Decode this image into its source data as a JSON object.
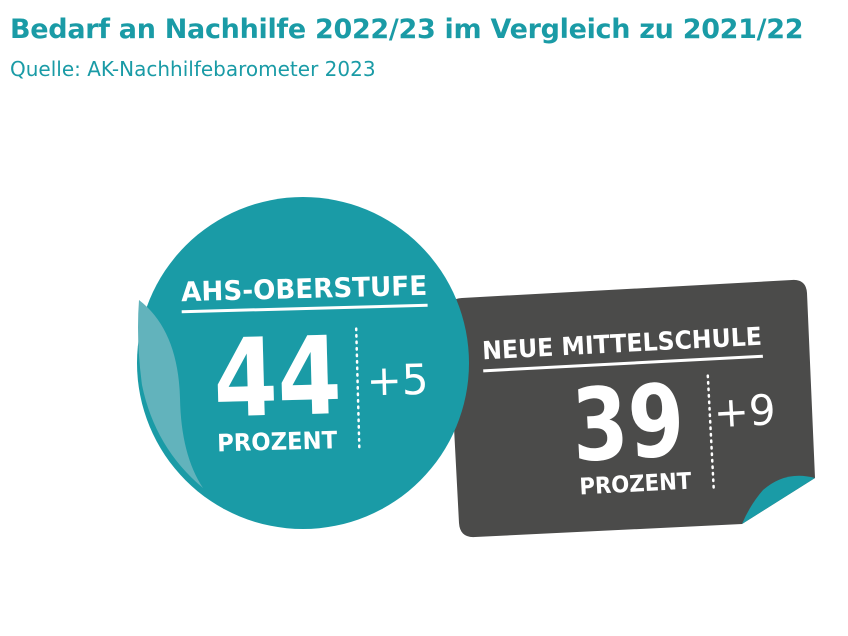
{
  "header": {
    "title": "Bedarf an Nachhilfe 2022/23 im Vergleich zu 2021/22",
    "source": "Quelle: AK-Nachhilfebarometer 2023"
  },
  "colors": {
    "title": "#1a9ba6",
    "teal": "#1a9ba6",
    "teal_flap": "#62b3bc",
    "dark": "#4b4b4a",
    "white": "#ffffff"
  },
  "chart_data": {
    "type": "table",
    "title": "Bedarf an Nachhilfe 2022/23 im Vergleich zu 2021/22",
    "subtitle": "Quelle: AK-Nachhilfebarometer 2023",
    "unit": "PROZENT",
    "items": [
      {
        "label": "AHS-OBERSTUFE",
        "value": 44,
        "value_label": "44",
        "unit_label": "PROZENT",
        "change": 5,
        "change_label": "+5",
        "color": "#1a9ba6"
      },
      {
        "label": "NEUE MITTELSCHULE",
        "value": 39,
        "value_label": "39",
        "unit_label": "PROZENT",
        "change": 9,
        "change_label": "+9",
        "color": "#4b4b4a"
      }
    ]
  }
}
